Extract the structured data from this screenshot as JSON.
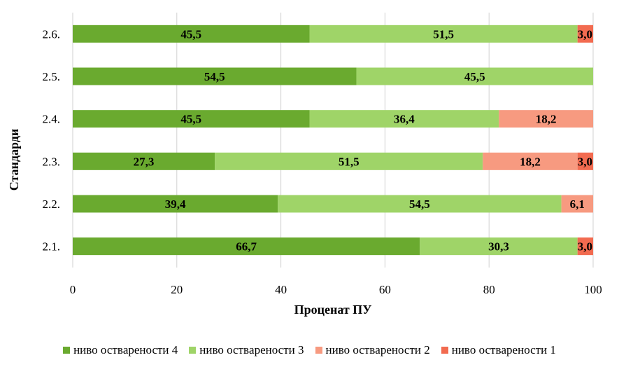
{
  "chart_data": {
    "type": "bar",
    "orientation": "horizontal",
    "stacked": true,
    "categories": [
      "2.1.",
      "2.2.",
      "2.3.",
      "2.4.",
      "2.5.",
      "2.6."
    ],
    "series": [
      {
        "name": "ниво оствaрености 4",
        "color": "#6aaa2f",
        "values": [
          66.7,
          39.4,
          27.3,
          45.5,
          54.5,
          45.5
        ],
        "labels": [
          "66,7",
          "39,4",
          "27,3",
          "45,5",
          "54,5",
          "45,5"
        ]
      },
      {
        "name": "ниво оствaрености 3",
        "color": "#9fd468",
        "values": [
          30.3,
          54.5,
          51.5,
          36.4,
          45.5,
          51.5
        ],
        "labels": [
          "30,3",
          "54,5",
          "51,5",
          "36,4",
          "45,5",
          "51,5"
        ]
      },
      {
        "name": "ниво оствaрености 2",
        "color": "#f79a80",
        "values": [
          0,
          6.1,
          18.2,
          18.2,
          0,
          0
        ],
        "labels": [
          "",
          "6,1",
          "18,2",
          "18,2",
          "",
          ""
        ]
      },
      {
        "name": "ниво оствaрености 1",
        "color": "#f26b50",
        "values": [
          3.0,
          0,
          3.0,
          0,
          0,
          3.0
        ],
        "labels": [
          "3,0",
          "",
          "3,0",
          "",
          "",
          "3,0"
        ]
      }
    ],
    "xlabel": "Проценат ПУ",
    "ylabel": "Стандарди",
    "xlim": [
      0,
      100
    ],
    "xticks": [
      "0",
      "20",
      "40",
      "60",
      "80",
      "100"
    ],
    "grid": true,
    "legend": "bottom"
  }
}
